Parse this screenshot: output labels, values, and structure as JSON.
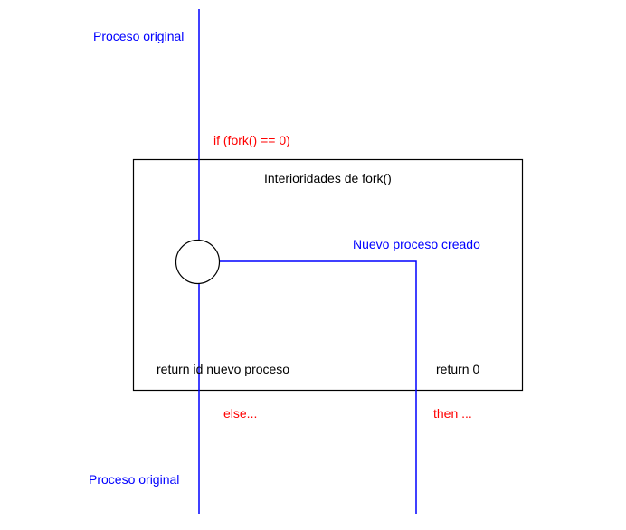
{
  "labels": {
    "original_process_top": "Proceso original",
    "fork_condition": "if (fork() == 0)",
    "fork_internals_title": "Interioridades de fork()",
    "new_process_created": "Nuevo proceso creado",
    "return_new_process_id": "return id nuevo proceso",
    "return_zero": "return 0",
    "else_branch": "else...",
    "then_branch": "then ...",
    "original_process_bottom": "Proceso original"
  },
  "colors": {
    "process_line": "#0000ff",
    "box_border": "#000000",
    "condition_text": "#ff0000",
    "process_text": "#0000ff",
    "box_text": "#000000"
  }
}
